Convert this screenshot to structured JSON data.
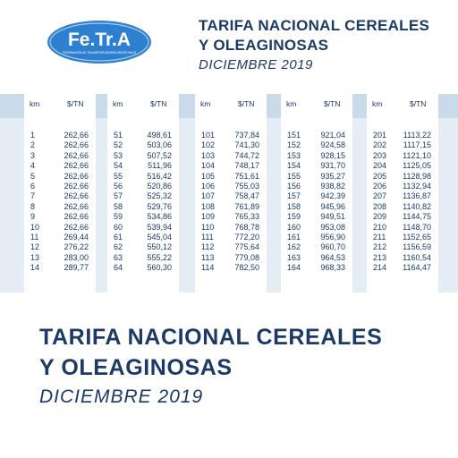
{
  "logo": {
    "text": "Fe.Tr.A",
    "tagline": "FEDERACIÓN DE TRANSPORTADORES ARGENTINOS",
    "colors": {
      "oval": "#2d7fd0",
      "text": "#ffffff"
    }
  },
  "header": {
    "title_line1": "TARIFA NACIONAL CEREALES",
    "title_line2": "Y OLEAGINOSAS",
    "subtitle": "DICIEMBRE 2019"
  },
  "table": {
    "col_km": "km",
    "col_price": "$/TN",
    "columns": [
      {
        "km": [
          "1",
          "2",
          "3",
          "4",
          "5",
          "6",
          "7",
          "8",
          "9",
          "10",
          "11",
          "12",
          "13",
          "14"
        ],
        "price": [
          "262,66",
          "262,66",
          "262,66",
          "262,66",
          "262,66",
          "262,66",
          "262,66",
          "262,66",
          "262,66",
          "262,66",
          "269,44",
          "276,22",
          "283,00",
          "289,77"
        ]
      },
      {
        "km": [
          "51",
          "52",
          "53",
          "54",
          "55",
          "56",
          "57",
          "58",
          "59",
          "60",
          "61",
          "62",
          "63",
          "64"
        ],
        "price": [
          "498,61",
          "503,06",
          "507,52",
          "511,96",
          "516,42",
          "520,86",
          "525,32",
          "529,76",
          "534,86",
          "539,94",
          "545,04",
          "550,12",
          "555,22",
          "560,30"
        ]
      },
      {
        "km": [
          "101",
          "102",
          "103",
          "104",
          "105",
          "106",
          "107",
          "108",
          "109",
          "110",
          "111",
          "112",
          "113",
          "114"
        ],
        "price": [
          "737,84",
          "741,30",
          "744,72",
          "748,17",
          "751,61",
          "755,03",
          "758,47",
          "761,89",
          "765,33",
          "768,78",
          "772,20",
          "775,64",
          "779,08",
          "782,50"
        ]
      },
      {
        "km": [
          "151",
          "152",
          "153",
          "154",
          "155",
          "156",
          "157",
          "158",
          "159",
          "160",
          "161",
          "162",
          "163",
          "164"
        ],
        "price": [
          "921,04",
          "924,58",
          "928,15",
          "931,70",
          "935,27",
          "938,82",
          "942,39",
          "945,96",
          "949,51",
          "953,08",
          "956,90",
          "960,70",
          "964,53",
          "968,33"
        ]
      },
      {
        "km": [
          "201",
          "202",
          "203",
          "204",
          "205",
          "206",
          "207",
          "208",
          "209",
          "210",
          "211",
          "212",
          "213",
          "214"
        ],
        "price": [
          "1113,22",
          "1117,15",
          "1121,10",
          "1125,05",
          "1128,98",
          "1132,94",
          "1136,87",
          "1140,82",
          "1144,75",
          "1148,70",
          "1152,65",
          "1156,59",
          "1160,54",
          "1164,47"
        ]
      }
    ]
  },
  "footer": {
    "title_line1": "TARIFA NACIONAL CEREALES",
    "title_line2": "Y OLEAGINOSAS",
    "subtitle": "DICIEMBRE 2019"
  },
  "colors": {
    "text": "#1b3a66",
    "band": "#e4edf6",
    "header_band": "#c9daeb"
  }
}
